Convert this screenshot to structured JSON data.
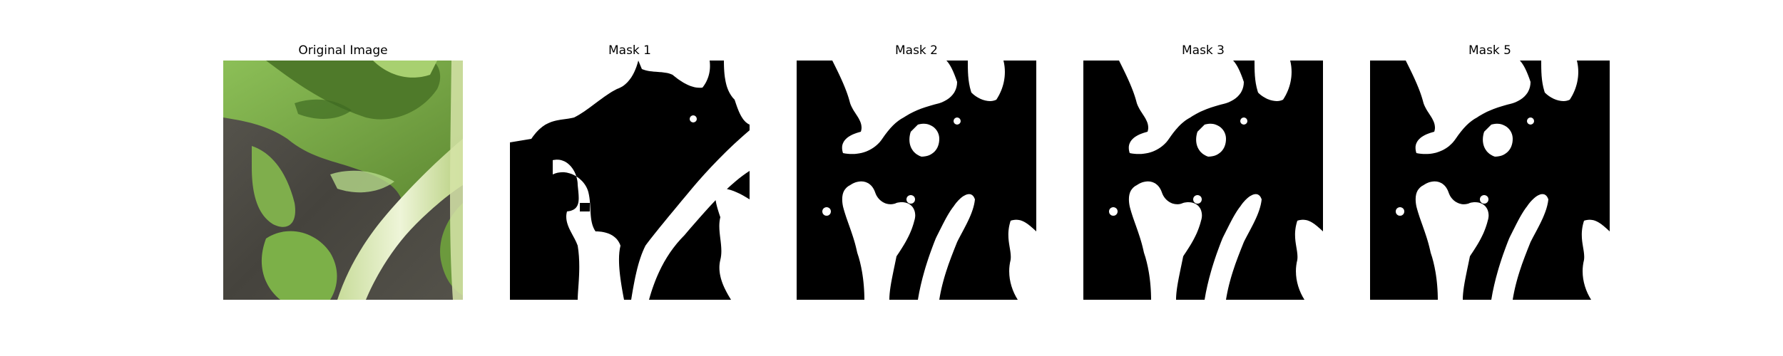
{
  "figure": {
    "panels": [
      {
        "title": "Original Image",
        "content": "photo of leafy green vegetable (bok choy) stems and leaves on dark soil"
      },
      {
        "title": "Mask 1",
        "content": "binary segmentation mask"
      },
      {
        "title": "Mask 2",
        "content": "binary segmentation mask"
      },
      {
        "title": "Mask 3",
        "content": "binary segmentation mask"
      },
      {
        "title": "Mask 5",
        "content": "binary segmentation mask"
      }
    ],
    "colors": {
      "background": "#ffffff",
      "mask_foreground": "#ffffff",
      "mask_background": "#000000",
      "soil": "#4d4a44",
      "leaf_dark": "#5f8a33",
      "leaf_light": "#9fc96a",
      "stem": "#d8e6b6"
    }
  }
}
